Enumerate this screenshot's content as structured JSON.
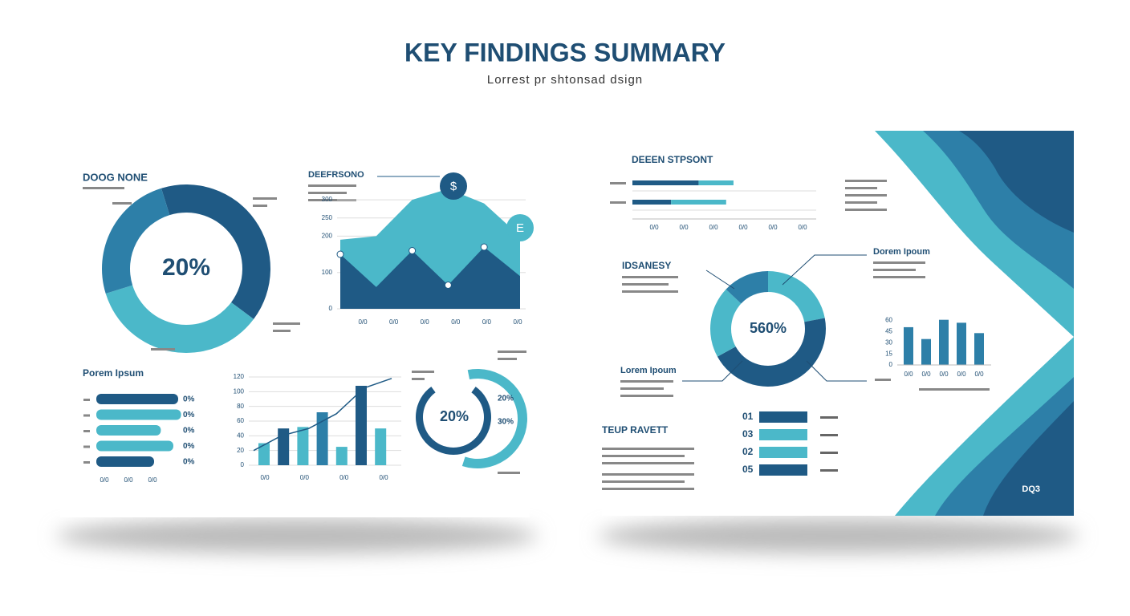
{
  "header": {
    "title": "KEY FINDINGS SUMMARY",
    "subtitle": "Lorrest pr shtonsad dsign"
  },
  "left": {
    "donut": {
      "title": "DOOG NONE",
      "center_label": "20%",
      "values": [
        40,
        35,
        25
      ],
      "colors": [
        "#1f5a85",
        "#4bb8c9",
        "#2d7fa8"
      ]
    },
    "area": {
      "title": "DEEFRSONO",
      "x_labels": [
        "0/0",
        "0/0",
        "0/0",
        "0/0",
        "0/0",
        "0/0"
      ],
      "ylim": [
        0,
        320
      ],
      "yticks": [
        0,
        100,
        200,
        250,
        300
      ],
      "icons": [
        "$",
        "E"
      ],
      "series": [
        {
          "color": "#4bb8c9",
          "values": [
            190,
            200,
            300,
            330,
            290,
            200
          ]
        },
        {
          "color": "#1f5a85",
          "values": [
            150,
            60,
            160,
            65,
            170,
            90
          ]
        }
      ]
    },
    "hbars": {
      "title": "Porem Ipsum",
      "values": [
        85,
        88,
        67,
        80,
        60
      ],
      "colors": [
        "#1f5a85",
        "#4bb8c9",
        "#4bb8c9",
        "#4bb8c9",
        "#1f5a85"
      ],
      "end_labels": [
        "0%",
        "0%",
        "0%",
        "0%",
        "0%"
      ],
      "x_labels": [
        "0/0",
        "0/0",
        "0/0"
      ]
    },
    "bars": {
      "ylim": [
        0,
        120
      ],
      "yticks": [
        0,
        20,
        40,
        60,
        80,
        100,
        120
      ],
      "values": [
        30,
        50,
        52,
        72,
        25,
        108,
        50
      ],
      "colors": [
        "#4bb8c9",
        "#1f5a85",
        "#4bb8c9",
        "#2d7fa8",
        "#4bb8c9",
        "#1f5a85",
        "#4bb8c9"
      ],
      "line": [
        20,
        40,
        50,
        70,
        105,
        118
      ],
      "x_labels": [
        "0/0",
        "0/0",
        "0/0",
        "0/0"
      ]
    },
    "ring": {
      "center_label": "20%",
      "values": [
        80,
        20
      ],
      "labels": [
        "20%",
        "30%"
      ]
    }
  },
  "right": {
    "hbars": {
      "title": "DEEEN STPSONT",
      "xlim": [
        0,
        100
      ],
      "x_labels": [
        "0/0",
        "0/0",
        "0/0",
        "0/0",
        "0/0",
        "0/0"
      ],
      "series": [
        {
          "color": "#1f5a85",
          "values": [
            36,
            21
          ]
        },
        {
          "color": "#4bb8c9",
          "values": [
            19,
            30
          ]
        }
      ]
    },
    "donut": {
      "title": "IDSANESY",
      "center_label": "560%",
      "values": [
        22,
        45,
        20,
        13
      ],
      "colors": [
        "#4bb8c9",
        "#1f5a85",
        "#4bb8c9",
        "#2d7fa8"
      ],
      "label_right": "Dorem Ipoum",
      "label_left": "Lorem Ipoum"
    },
    "bars": {
      "ylim": [
        0,
        65
      ],
      "yticks": [
        0,
        15,
        30,
        45,
        60
      ],
      "values": [
        51,
        35,
        61,
        57,
        43
      ],
      "color": "#2d7fa8",
      "x_labels": [
        "0/0",
        "0/0",
        "0/0",
        "0/0",
        "0/0"
      ]
    },
    "note": {
      "title": "TEUP RAVETT"
    },
    "list": {
      "numbers": [
        "01",
        "03",
        "02",
        "05"
      ],
      "colors": [
        "#1f5a85",
        "#4bb8c9",
        "#4bb8c9",
        "#1f5a85"
      ]
    },
    "brand": "DQ3"
  }
}
